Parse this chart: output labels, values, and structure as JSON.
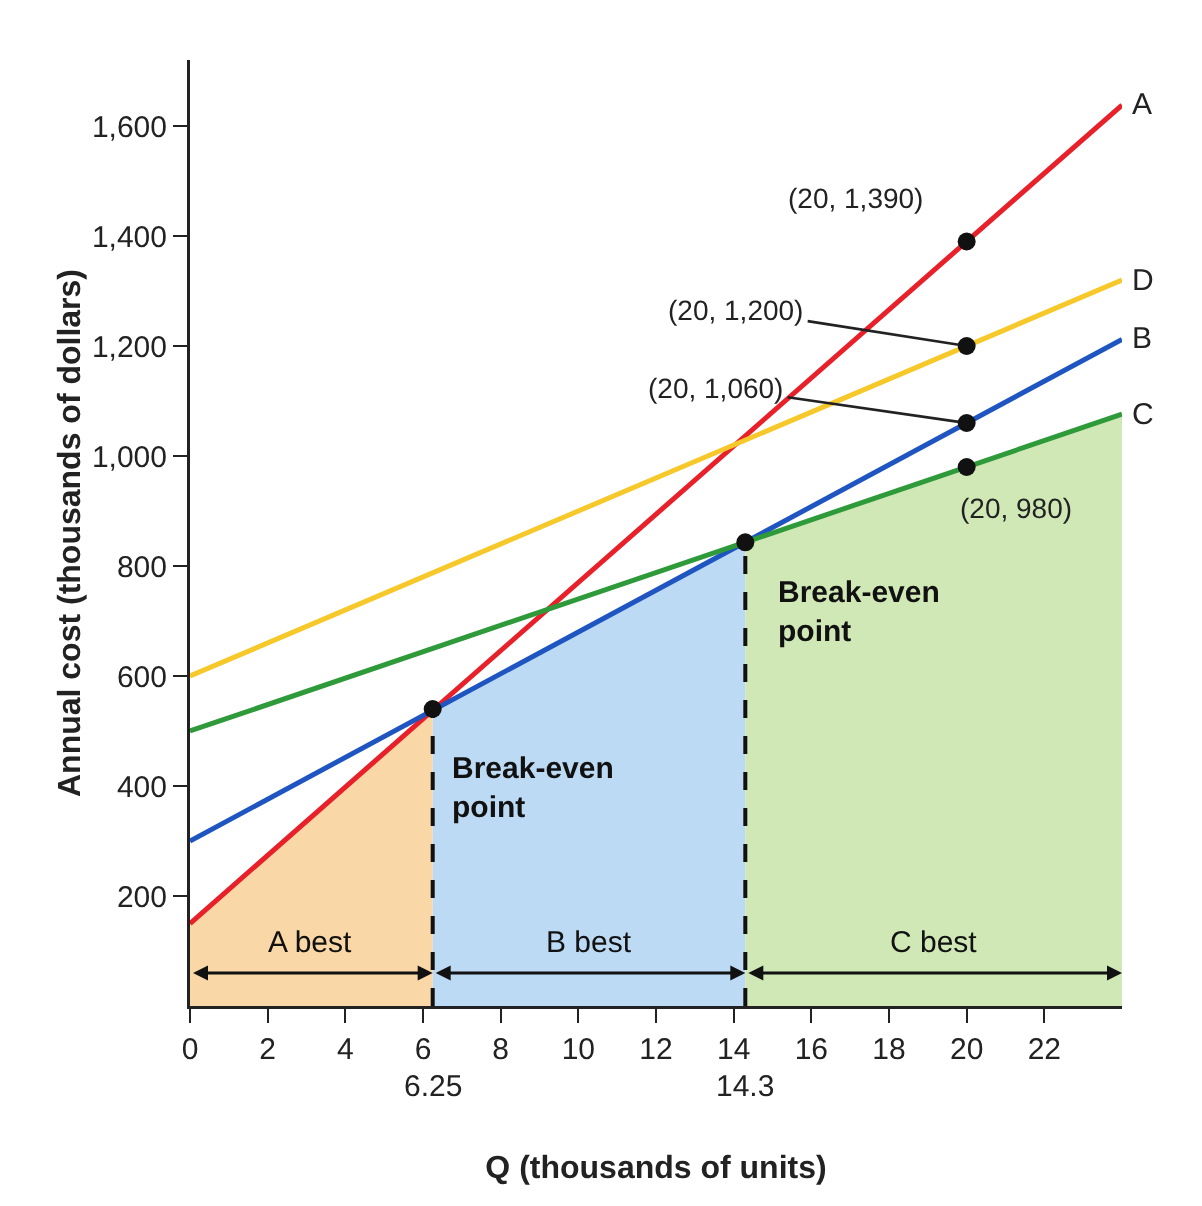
{
  "chart_data": {
    "type": "line",
    "xlabel": "Q (thousands of units)",
    "ylabel": "Annual cost (thousands of dollars)",
    "xlim": [
      0,
      24
    ],
    "ylim": [
      0,
      1720
    ],
    "xticks": [
      0,
      2,
      4,
      6,
      8,
      10,
      12,
      14,
      16,
      18,
      20,
      22
    ],
    "yticks": [
      200,
      400,
      600,
      800,
      {
        "value": 1000,
        "label": "1,000"
      },
      {
        "value": 1200,
        "label": "1,200"
      },
      {
        "value": 1400,
        "label": "1,400"
      },
      {
        "value": 1600,
        "label": "1,600"
      }
    ],
    "grid": false,
    "legend": false,
    "series": [
      {
        "type": "area",
        "color": "#f9d7a6",
        "x": [
          0,
          6.25
        ],
        "values": [
          150,
          540
        ]
      },
      {
        "type": "area",
        "color": "#bcdaf4",
        "x": [
          6.25,
          14.3
        ],
        "values": [
          540,
          843
        ]
      },
      {
        "type": "area",
        "color": "#cfe8b6",
        "x": [
          14.3,
          24
        ],
        "values": [
          843,
          1076
        ]
      },
      {
        "name": "A",
        "color": "#e8202a",
        "x": [
          0,
          24
        ],
        "values": [
          150,
          1638
        ]
      },
      {
        "name": "D",
        "color": "#f7c82a",
        "x": [
          0,
          24
        ],
        "values": [
          600,
          1320
        ]
      },
      {
        "name": "B",
        "color": "#1f55c0",
        "x": [
          0,
          24
        ],
        "values": [
          300,
          1212
        ]
      },
      {
        "name": "C",
        "color": "#2e9a3a",
        "x": [
          0,
          24
        ],
        "values": [
          500,
          1076
        ]
      },
      {
        "type": "scatter",
        "color": "#111111",
        "marker": "circle",
        "x": [
          20,
          20,
          20,
          20,
          6.25,
          14.3
        ],
        "values": [
          1390,
          1200,
          1060,
          980,
          540,
          843
        ]
      }
    ],
    "ref_lines": [
      {
        "axis": "x",
        "value": 6.25,
        "label": "6.25",
        "line_style": "dashed",
        "color": "#111111"
      },
      {
        "axis": "x",
        "value": 14.3,
        "label": "14.3",
        "line_style": "dashed",
        "color": "#111111"
      }
    ],
    "annotations": [
      {
        "text": "(20, 1,390)",
        "x": 20,
        "y": 1390
      },
      {
        "text": "(20, 1,200)",
        "x": 20,
        "y": 1200
      },
      {
        "text": "(20, 1,060)",
        "x": 20,
        "y": 1060
      },
      {
        "text": "(20, 980)",
        "x": 20,
        "y": 980
      },
      {
        "text": "Break-even\npoint",
        "x": 6.25,
        "y": 540
      },
      {
        "text": "Break-even\npoint",
        "x": 14.3,
        "y": 843
      },
      "A best",
      "B best",
      "C best"
    ]
  }
}
